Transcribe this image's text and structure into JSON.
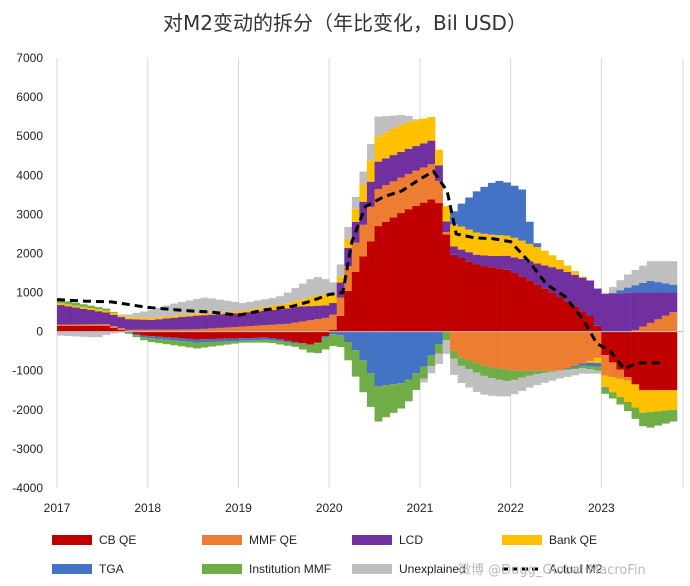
{
  "chart_data": {
    "type": "bar",
    "stacked": true,
    "title": "对M2变动的拆分（年比变化，Bil USD）",
    "ylim": [
      -4000,
      7000
    ],
    "ytick_step": 1000,
    "xlim": [
      2017.0,
      2023.9
    ],
    "xtick_labels": [
      "2017",
      "2018",
      "2019",
      "2020",
      "2021",
      "2022",
      "2023"
    ],
    "grid": "vertical",
    "legend_position": "bottom",
    "series": [
      {
        "name": "CB QE",
        "color": "#C00000",
        "values": [
          {
            "t": 2017.0,
            "v": 150
          },
          {
            "t": 2017.5,
            "v": 150
          },
          {
            "t": 2017.9,
            "v": -100
          },
          {
            "t": 2018.5,
            "v": -200
          },
          {
            "t": 2019.3,
            "v": -150
          },
          {
            "t": 2019.8,
            "v": -350
          },
          {
            "t": 2020.05,
            "v": 150
          },
          {
            "t": 2020.2,
            "v": 1300
          },
          {
            "t": 2020.5,
            "v": 2700
          },
          {
            "t": 2020.8,
            "v": 3100
          },
          {
            "t": 2021.0,
            "v": 3300
          },
          {
            "t": 2021.15,
            "v": 3450
          },
          {
            "t": 2021.3,
            "v": 2000
          },
          {
            "t": 2021.6,
            "v": 1700
          },
          {
            "t": 2021.9,
            "v": 1600
          },
          {
            "t": 2022.1,
            "v": 1400
          },
          {
            "t": 2022.5,
            "v": 900
          },
          {
            "t": 2022.9,
            "v": 300
          },
          {
            "t": 2023.0,
            "v": -600
          },
          {
            "t": 2023.4,
            "v": -1500
          },
          {
            "t": 2023.75,
            "v": -1500
          }
        ]
      },
      {
        "name": "MMF QE",
        "color": "#ED7D31",
        "values": [
          {
            "t": 2017.0,
            "v": 30
          },
          {
            "t": 2018.5,
            "v": 60
          },
          {
            "t": 2019.5,
            "v": 200
          },
          {
            "t": 2020.05,
            "v": 400
          },
          {
            "t": 2020.2,
            "v": 700
          },
          {
            "t": 2020.5,
            "v": 950
          },
          {
            "t": 2020.8,
            "v": 900
          },
          {
            "t": 2021.1,
            "v": 900
          },
          {
            "t": 2021.2,
            "v": 400
          },
          {
            "t": 2021.35,
            "v": -600
          },
          {
            "t": 2021.7,
            "v": -900
          },
          {
            "t": 2022.0,
            "v": -1000
          },
          {
            "t": 2022.5,
            "v": -1000
          },
          {
            "t": 2022.9,
            "v": -700
          },
          {
            "t": 2023.3,
            "v": 0
          },
          {
            "t": 2023.75,
            "v": 500
          }
        ]
      },
      {
        "name": "LCD",
        "color": "#7030A0",
        "values": [
          {
            "t": 2017.0,
            "v": 500
          },
          {
            "t": 2017.5,
            "v": 300
          },
          {
            "t": 2018.0,
            "v": 250
          },
          {
            "t": 2018.5,
            "v": 350
          },
          {
            "t": 2019.0,
            "v": 350
          },
          {
            "t": 2019.6,
            "v": 400
          },
          {
            "t": 2020.0,
            "v": 300
          },
          {
            "t": 2020.2,
            "v": 500
          },
          {
            "t": 2020.5,
            "v": 700
          },
          {
            "t": 2020.8,
            "v": 650
          },
          {
            "t": 2021.1,
            "v": 600
          },
          {
            "t": 2021.2,
            "v": 300
          },
          {
            "t": 2021.35,
            "v": 200
          },
          {
            "t": 2021.8,
            "v": 300
          },
          {
            "t": 2022.2,
            "v": 500
          },
          {
            "t": 2022.5,
            "v": 700
          },
          {
            "t": 2022.9,
            "v": 950
          },
          {
            "t": 2023.3,
            "v": 1000
          },
          {
            "t": 2023.75,
            "v": 500
          }
        ]
      },
      {
        "name": "Bank QE",
        "color": "#FFC000",
        "values": [
          {
            "t": 2017.0,
            "v": 50
          },
          {
            "t": 2019.0,
            "v": 50
          },
          {
            "t": 2019.6,
            "v": 150
          },
          {
            "t": 2019.9,
            "v": 300
          },
          {
            "t": 2020.1,
            "v": 150
          },
          {
            "t": 2020.3,
            "v": 400
          },
          {
            "t": 2020.5,
            "v": 650
          },
          {
            "t": 2020.8,
            "v": 700
          },
          {
            "t": 2021.1,
            "v": 600
          },
          {
            "t": 2021.2,
            "v": 300
          },
          {
            "t": 2021.35,
            "v": 600
          },
          {
            "t": 2021.7,
            "v": 550
          },
          {
            "t": 2022.0,
            "v": 500
          },
          {
            "t": 2022.3,
            "v": 400
          },
          {
            "t": 2022.6,
            "v": 150
          },
          {
            "t": 2022.9,
            "v": -100
          },
          {
            "t": 2023.0,
            "v": -300
          },
          {
            "t": 2023.3,
            "v": -600
          },
          {
            "t": 2023.75,
            "v": -500
          }
        ]
      },
      {
        "name": "TGA",
        "color": "#4472C4",
        "values": [
          {
            "t": 2017.0,
            "v": 0
          },
          {
            "t": 2017.5,
            "v": 0
          },
          {
            "t": 2018.0,
            "v": -50
          },
          {
            "t": 2018.5,
            "v": -80
          },
          {
            "t": 2019.4,
            "v": -50
          },
          {
            "t": 2019.8,
            "v": 0
          },
          {
            "t": 2020.1,
            "v": -100
          },
          {
            "t": 2020.3,
            "v": -600
          },
          {
            "t": 2020.5,
            "v": -1400
          },
          {
            "t": 2020.8,
            "v": -1300
          },
          {
            "t": 2021.0,
            "v": -900
          },
          {
            "t": 2021.2,
            "v": -200
          },
          {
            "t": 2021.35,
            "v": 400
          },
          {
            "t": 2021.6,
            "v": 1100
          },
          {
            "t": 2021.8,
            "v": 1400
          },
          {
            "t": 2022.1,
            "v": 1300
          },
          {
            "t": 2022.2,
            "v": 200
          },
          {
            "t": 2022.3,
            "v": 0
          },
          {
            "t": 2022.5,
            "v": 0
          },
          {
            "t": 2022.9,
            "v": -100
          },
          {
            "t": 2023.2,
            "v": 100
          },
          {
            "t": 2023.5,
            "v": 300
          },
          {
            "t": 2023.75,
            "v": 200
          }
        ]
      },
      {
        "name": "Institution MMF",
        "color": "#70AD47",
        "values": [
          {
            "t": 2017.0,
            "v": 80
          },
          {
            "t": 2017.5,
            "v": 50
          },
          {
            "t": 2018.0,
            "v": -100
          },
          {
            "t": 2018.5,
            "v": -150
          },
          {
            "t": 2019.0,
            "v": -50
          },
          {
            "t": 2019.6,
            "v": -100
          },
          {
            "t": 2019.9,
            "v": -300
          },
          {
            "t": 2020.1,
            "v": -300
          },
          {
            "t": 2020.3,
            "v": -800
          },
          {
            "t": 2020.5,
            "v": -900
          },
          {
            "t": 2020.8,
            "v": -600
          },
          {
            "t": 2021.0,
            "v": -300
          },
          {
            "t": 2021.3,
            "v": -200
          },
          {
            "t": 2021.6,
            "v": -250
          },
          {
            "t": 2021.9,
            "v": -300
          },
          {
            "t": 2022.2,
            "v": -100
          },
          {
            "t": 2022.5,
            "v": 0
          },
          {
            "t": 2022.9,
            "v": -100
          },
          {
            "t": 2023.2,
            "v": -200
          },
          {
            "t": 2023.5,
            "v": -400
          },
          {
            "t": 2023.75,
            "v": -300
          }
        ]
      },
      {
        "name": "Unexplained",
        "color": "#BFBFBF",
        "values": [
          {
            "t": 2017.0,
            "v": -100
          },
          {
            "t": 2017.4,
            "v": -150
          },
          {
            "t": 2017.8,
            "v": 100
          },
          {
            "t": 2018.2,
            "v": 300
          },
          {
            "t": 2018.6,
            "v": 400
          },
          {
            "t": 2019.0,
            "v": 200
          },
          {
            "t": 2019.4,
            "v": 200
          },
          {
            "t": 2019.8,
            "v": 500
          },
          {
            "t": 2020.0,
            "v": 300
          },
          {
            "t": 2020.3,
            "v": 300
          },
          {
            "t": 2020.5,
            "v": 500
          },
          {
            "t": 2020.8,
            "v": 200
          },
          {
            "t": 2021.0,
            "v": -100
          },
          {
            "t": 2021.3,
            "v": -400
          },
          {
            "t": 2021.6,
            "v": -500
          },
          {
            "t": 2021.9,
            "v": -400
          },
          {
            "t": 2022.2,
            "v": -300
          },
          {
            "t": 2022.5,
            "v": -200
          },
          {
            "t": 2022.9,
            "v": -100
          },
          {
            "t": 2023.2,
            "v": 300
          },
          {
            "t": 2023.5,
            "v": 500
          },
          {
            "t": 2023.75,
            "v": 600
          }
        ]
      }
    ],
    "line": {
      "name": "Actual M2",
      "color": "#000000",
      "dash": true,
      "points": [
        [
          2017.0,
          820
        ],
        [
          2017.3,
          780
        ],
        [
          2017.6,
          760
        ],
        [
          2018.0,
          620
        ],
        [
          2018.4,
          540
        ],
        [
          2018.7,
          500
        ],
        [
          2019.0,
          420
        ],
        [
          2019.3,
          560
        ],
        [
          2019.6,
          650
        ],
        [
          2019.8,
          780
        ],
        [
          2020.0,
          950
        ],
        [
          2020.15,
          1000
        ],
        [
          2020.25,
          2300
        ],
        [
          2020.4,
          3200
        ],
        [
          2020.6,
          3450
        ],
        [
          2020.8,
          3600
        ],
        [
          2021.0,
          3900
        ],
        [
          2021.15,
          4100
        ],
        [
          2021.3,
          3600
        ],
        [
          2021.4,
          2500
        ],
        [
          2021.6,
          2400
        ],
        [
          2021.8,
          2380
        ],
        [
          2022.0,
          2300
        ],
        [
          2022.2,
          1800
        ],
        [
          2022.4,
          1200
        ],
        [
          2022.6,
          900
        ],
        [
          2022.8,
          300
        ],
        [
          2022.95,
          -300
        ],
        [
          2023.1,
          -500
        ],
        [
          2023.25,
          -950
        ],
        [
          2023.4,
          -800
        ],
        [
          2023.6,
          -800
        ],
        [
          2023.7,
          -800
        ]
      ]
    },
    "legend": [
      {
        "name": "CB QE",
        "color": "#C00000",
        "kind": "box"
      },
      {
        "name": "MMF QE",
        "color": "#ED7D31",
        "kind": "box"
      },
      {
        "name": "LCD",
        "color": "#7030A0",
        "kind": "box"
      },
      {
        "name": "Bank QE",
        "color": "#FFC000",
        "kind": "box"
      },
      {
        "name": "TGA",
        "color": "#4472C4",
        "kind": "box"
      },
      {
        "name": "Institution MMF",
        "color": "#70AD47",
        "kind": "box"
      },
      {
        "name": "Unexplained",
        "color": "#BFBFBF",
        "kind": "box"
      },
      {
        "name": "Actual M2",
        "color": "#000000",
        "kind": "dash"
      }
    ]
  },
  "watermark": "微博 @Dugg_Global MacroFin"
}
